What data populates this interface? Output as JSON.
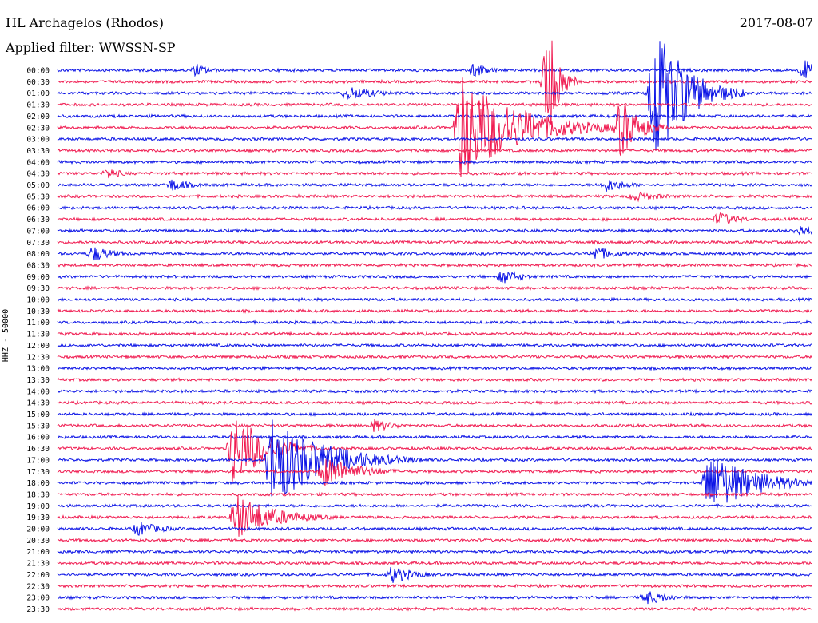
{
  "header": {
    "station": "HL Archagelos (Rhodos)",
    "filter": "Applied filter: WWSSN-SP",
    "date": "2017-08-07"
  },
  "channel_label": "HHZ - 50000",
  "colors": {
    "trace_a": "#0a12e6",
    "trace_b": "#f01a50"
  },
  "chart_data": {
    "type": "line",
    "title": "HL Archagelos (Rhodos)",
    "subtitle": "Applied filter: WWSSN-SP",
    "date": "2017-08-07",
    "ylabel": "HHZ - 50000",
    "row_labels": [
      "00:00",
      "00:30",
      "01:00",
      "01:30",
      "02:00",
      "02:30",
      "03:00",
      "03:30",
      "04:00",
      "04:30",
      "05:00",
      "05:30",
      "06:00",
      "06:30",
      "07:00",
      "07:30",
      "08:00",
      "08:30",
      "09:00",
      "09:30",
      "10:00",
      "10:30",
      "11:00",
      "11:30",
      "12:00",
      "12:30",
      "13:00",
      "13:30",
      "14:00",
      "14:30",
      "15:00",
      "15:30",
      "16:00",
      "16:30",
      "17:00",
      "17:30",
      "18:00",
      "18:30",
      "19:00",
      "19:30",
      "20:00",
      "20:30",
      "21:00",
      "21:30",
      "22:00",
      "22:30",
      "23:00",
      "23:30"
    ],
    "row_minutes": 30,
    "alternating_colors": [
      "#0a12e6",
      "#f01a50"
    ],
    "grid": false,
    "events": [
      {
        "row": 0,
        "minute": 5.5,
        "amp": 8,
        "width": 0.6
      },
      {
        "row": 0,
        "minute": 16.5,
        "amp": 10,
        "width": 0.7
      },
      {
        "row": 0,
        "minute": 29.7,
        "amp": 14,
        "width": 1.0
      },
      {
        "row": 1,
        "minute": 19.5,
        "amp": 85,
        "width": 0.4
      },
      {
        "row": 2,
        "minute": 23.7,
        "amp": 95,
        "width": 1.2
      },
      {
        "row": 2,
        "minute": 11.5,
        "amp": 10,
        "width": 1.2
      },
      {
        "row": 5,
        "minute": 16.0,
        "amp": 70,
        "width": 2.2
      },
      {
        "row": 5,
        "minute": 22.4,
        "amp": 40,
        "width": 0.7
      },
      {
        "row": 9,
        "minute": 2.0,
        "amp": 8,
        "width": 0.6
      },
      {
        "row": 10,
        "minute": 4.5,
        "amp": 9,
        "width": 0.8
      },
      {
        "row": 10,
        "minute": 21.8,
        "amp": 10,
        "width": 0.8
      },
      {
        "row": 11,
        "minute": 22.9,
        "amp": 7,
        "width": 1.2
      },
      {
        "row": 13,
        "minute": 26.3,
        "amp": 10,
        "width": 0.8
      },
      {
        "row": 14,
        "minute": 29.5,
        "amp": 9,
        "width": 0.8
      },
      {
        "row": 16,
        "minute": 1.4,
        "amp": 11,
        "width": 0.8
      },
      {
        "row": 16,
        "minute": 21.4,
        "amp": 10,
        "width": 0.8
      },
      {
        "row": 18,
        "minute": 17.7,
        "amp": 10,
        "width": 0.8
      },
      {
        "row": 31,
        "minute": 12.6,
        "amp": 9,
        "width": 0.8
      },
      {
        "row": 33,
        "minute": 7.0,
        "amp": 50,
        "width": 1.2
      },
      {
        "row": 34,
        "minute": 8.5,
        "amp": 60,
        "width": 2.0
      },
      {
        "row": 35,
        "minute": 10.6,
        "amp": 20,
        "width": 1.4
      },
      {
        "row": 36,
        "minute": 25.9,
        "amp": 40,
        "width": 1.8
      },
      {
        "row": 39,
        "minute": 7.1,
        "amp": 30,
        "width": 1.5
      },
      {
        "row": 40,
        "minute": 3.2,
        "amp": 10,
        "width": 0.9
      },
      {
        "row": 44,
        "minute": 13.3,
        "amp": 12,
        "width": 0.9
      },
      {
        "row": 46,
        "minute": 23.4,
        "amp": 10,
        "width": 0.9
      }
    ]
  }
}
